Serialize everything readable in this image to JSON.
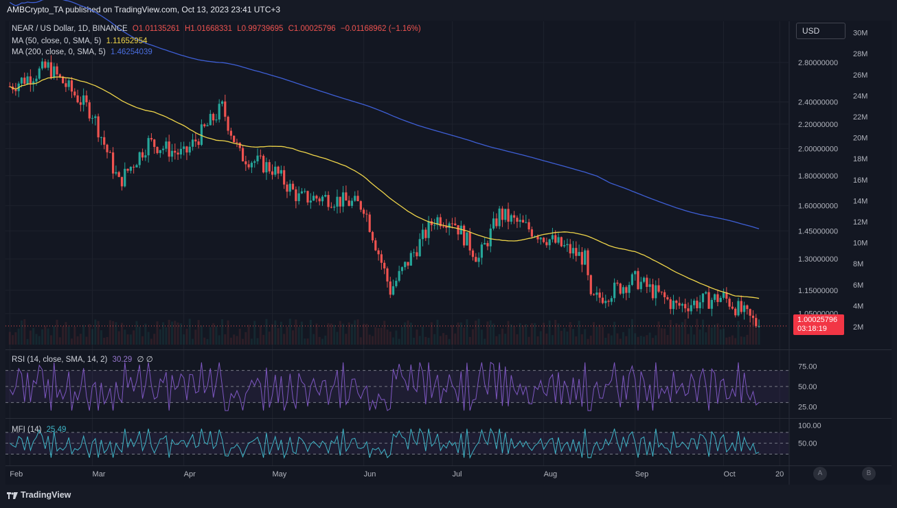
{
  "header": {
    "text": "AMBCrypto_TA published on TradingView.com, Oct 13, 2023 23:41 UTC+3"
  },
  "legend": {
    "symbol": "NEAR / US Dollar, 1D, BINANCE",
    "open": "O1.01135261",
    "high": "H1.01668331",
    "low": "L0.99739695",
    "close": "C1.00025796",
    "change": "−0.01168962 (−1.16%)",
    "ma50_label": "MA (50, close, 0, SMA, 5)",
    "ma50_value": "1.11652954",
    "ma200_label": "MA (200, close, 0, SMA, 5)",
    "ma200_value": "1.46254039",
    "rsi_label": "RSI (14, close, SMA, 14, 2)",
    "rsi_value": "30.29",
    "rsi_extra": "∅ ∅",
    "mfi_label": "MFI (14)",
    "mfi_value": "25.49"
  },
  "currency_button": "USD",
  "price_tag": {
    "price": "1.00025796",
    "countdown": "03:18:19"
  },
  "footer": {
    "brand": "TradingView"
  },
  "buttons": {
    "a": "A",
    "b": "B"
  },
  "colors": {
    "up": "#26a69a",
    "down": "#ef5350",
    "ma50": "#f0d64a",
    "ma200": "#3e5fd6",
    "rsi": "#7e57c2",
    "mfi": "#3fb7c9"
  },
  "chart_data": [
    {
      "type": "candlestick",
      "title": "NEAR / US Dollar, 1D, BINANCE",
      "y_scale": "log",
      "ylim": [
        0.93,
        3.28
      ],
      "y_ticks": [
        "1.05000000",
        "1.15000000",
        "1.30000000",
        "1.45000000",
        "1.60000000",
        "1.80000000",
        "2.00000000",
        "2.20000000",
        "2.40000000",
        "2.80000000"
      ],
      "volume_ticks": [
        "2M",
        "4M",
        "6M",
        "8M",
        "10M",
        "12M",
        "14M",
        "16M",
        "18M",
        "20M",
        "22M",
        "24M",
        "26M",
        "28M",
        "30M"
      ],
      "x_ticks": [
        "Feb",
        "Mar",
        "Apr",
        "May",
        "Jun",
        "Jul",
        "Aug",
        "Sep",
        "Oct",
        "20"
      ],
      "key_points": {
        "x": [
          "2023-02-01",
          "2023-02-14",
          "2023-03-01",
          "2023-03-10",
          "2023-03-20",
          "2023-04-01",
          "2023-04-14",
          "2023-04-20",
          "2023-05-01",
          "2023-05-10",
          "2023-05-20",
          "2023-06-01",
          "2023-06-10",
          "2023-06-25",
          "2023-07-01",
          "2023-07-10",
          "2023-07-17",
          "2023-08-01",
          "2023-08-15",
          "2023-08-17",
          "2023-09-01",
          "2023-09-15",
          "2023-10-01",
          "2023-10-13"
        ],
        "close": [
          2.55,
          2.75,
          2.3,
          1.75,
          2.05,
          1.95,
          2.35,
          1.95,
          1.85,
          1.65,
          1.65,
          1.6,
          1.15,
          1.52,
          1.52,
          1.3,
          1.55,
          1.42,
          1.3,
          1.1,
          1.2,
          1.08,
          1.12,
          1.0
        ]
      },
      "series": [
        {
          "name": "MA (50, close, 0, SMA, 5)",
          "last": 1.11652954
        },
        {
          "name": "MA (200, close, 0, SMA, 5)",
          "last": 1.46254039
        }
      ]
    },
    {
      "type": "line",
      "title": "RSI (14, close, SMA, 14, 2)",
      "y_ticks": [
        "75.00",
        "50.00",
        "25.00"
      ],
      "ylim": [
        15,
        85
      ],
      "last": 30.29
    },
    {
      "type": "line",
      "title": "MFI (14)",
      "y_ticks": [
        "100.00",
        "50.00"
      ],
      "ylim": [
        0,
        110
      ],
      "last": 25.49
    }
  ]
}
